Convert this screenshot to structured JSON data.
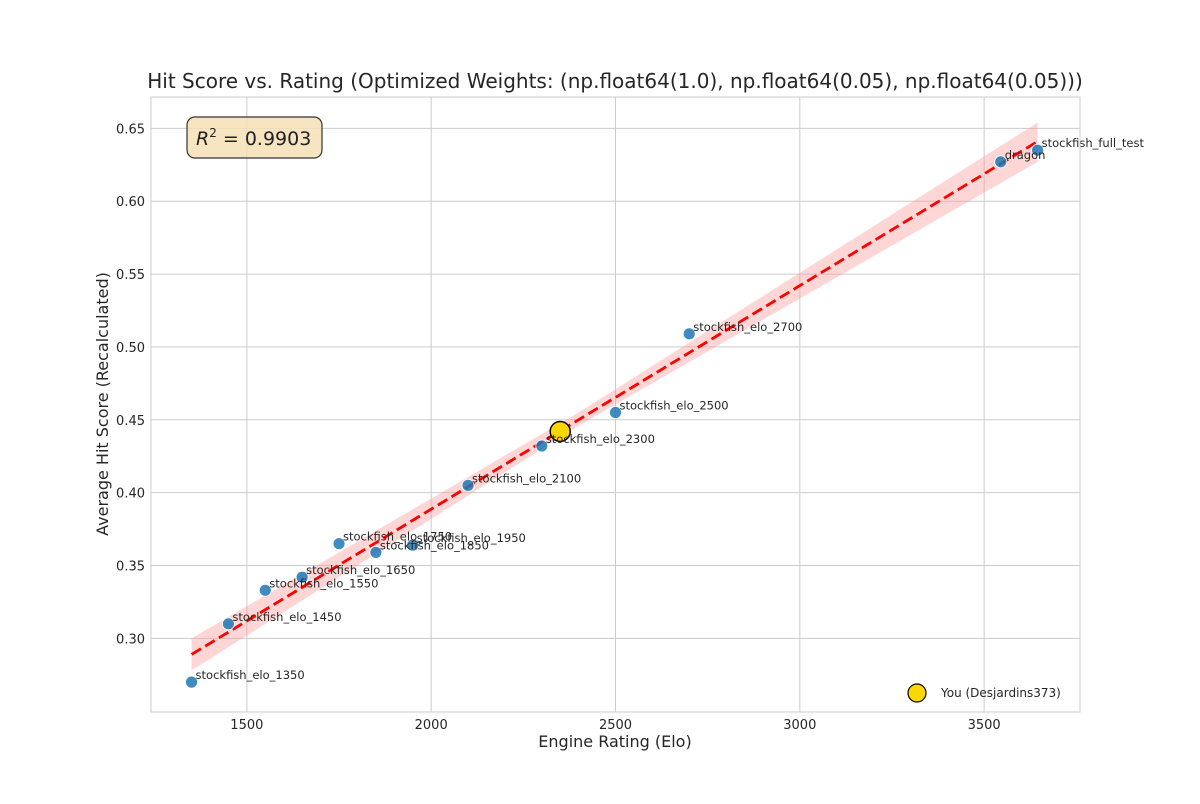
{
  "chart_data": {
    "type": "scatter",
    "title": "Hit Score vs. Rating (Optimized Weights: (np.float64(1.0), np.float64(0.05), np.float64(0.05)))",
    "xlabel": "Engine Rating (Elo)",
    "ylabel": "Average Hit Score (Recalculated)",
    "xlim": [
      1240,
      3760
    ],
    "ylim": [
      0.2495,
      0.6715
    ],
    "xticks": [
      1500,
      2000,
      2500,
      3000,
      3500
    ],
    "yticks": [
      0.3,
      0.35,
      0.4,
      0.45,
      0.5,
      0.55,
      0.6,
      0.65
    ],
    "grid": true,
    "annotation": {
      "label": "R² = 0.9903",
      "r2_prefix": "R",
      "r2_exp": "2",
      "r2_value": " = 0.9903",
      "position": "top-left"
    },
    "series": [
      {
        "type": "scatter",
        "color": "#1f77b4",
        "points": [
          {
            "x": 1350,
            "y": 0.27,
            "label": "stockfish_elo_1350"
          },
          {
            "x": 1450,
            "y": 0.31,
            "label": "stockfish_elo_1450"
          },
          {
            "x": 1550,
            "y": 0.333,
            "label": "stockfish_elo_1550"
          },
          {
            "x": 1650,
            "y": 0.342,
            "label": "stockfish_elo_1650"
          },
          {
            "x": 1750,
            "y": 0.365,
            "label": "stockfish_elo_1750"
          },
          {
            "x": 1850,
            "y": 0.359,
            "label": "stockfish_elo_1850"
          },
          {
            "x": 1950,
            "y": 0.364,
            "label": "stockfish_elo_1950"
          },
          {
            "x": 2100,
            "y": 0.405,
            "label": "stockfish_elo_2100"
          },
          {
            "x": 2300,
            "y": 0.432,
            "label": "stockfish_elo_2300"
          },
          {
            "x": 2500,
            "y": 0.455,
            "label": "stockfish_elo_2500"
          },
          {
            "x": 2700,
            "y": 0.509,
            "label": "stockfish_elo_2700"
          },
          {
            "x": 3545,
            "y": 0.627,
            "label": "dragon"
          },
          {
            "x": 3645,
            "y": 0.635,
            "label": "stockfish_full_test"
          }
        ]
      },
      {
        "type": "line",
        "style": "dashed",
        "color": "#ff0000",
        "x": [
          1350,
          3645
        ],
        "y": [
          0.289,
          0.641
        ]
      },
      {
        "type": "band",
        "color": "#ff9999",
        "x": [
          1350,
          2400,
          3645
        ],
        "lower": [
          0.278,
          0.446,
          0.627
        ],
        "upper": [
          0.3,
          0.455,
          0.654
        ]
      },
      {
        "type": "highlight",
        "name": "You (Desjardins373)",
        "color": "#ffd700",
        "x": 2350,
        "y": 0.442
      }
    ],
    "legend": {
      "position": "bottom-right",
      "entries": [
        "You (Desjardins373)"
      ]
    }
  }
}
